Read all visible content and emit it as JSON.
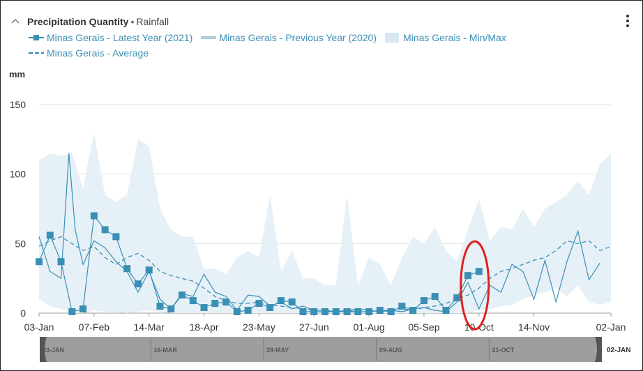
{
  "header": {
    "title": "Precipitation Quantity",
    "separator": "•",
    "subtitle": "Rainfall"
  },
  "legend": [
    {
      "label": "Minas Gerais - Latest Year (2021)",
      "icon": "line-square-marker",
      "color": "#3a8fb5"
    },
    {
      "label": "Minas Gerais - Previous Year (2020)",
      "icon": "light-line",
      "color": "#a8cfe0"
    },
    {
      "label": "Minas Gerais - Min/Max",
      "icon": "area-band",
      "color": "#d9e9f3"
    },
    {
      "label": "Minas Gerais - Average",
      "icon": "dashed-line",
      "color": "#3a8fb5"
    }
  ],
  "colors": {
    "series": "#3a8fb5",
    "band": "#e6f0f7",
    "grid": "#e0e0e0",
    "annotation": "#e02020"
  },
  "navigator": {
    "labels": [
      "03-JAN",
      "16-MAR",
      "28-MAY",
      "09-AUG",
      "21-OCT"
    ],
    "end_label": "02-JAN"
  },
  "chart_data": {
    "type": "line",
    "title": "Precipitation Quantity",
    "subtitle": "Rainfall",
    "ylabel": "mm",
    "ylim": [
      0,
      150
    ],
    "yticks": [
      0,
      50,
      100,
      150
    ],
    "xlim": [
      0,
      364
    ],
    "xticks": [
      {
        "day": 0,
        "label": "03-Jan"
      },
      {
        "day": 35,
        "label": "07-Feb"
      },
      {
        "day": 70,
        "label": "14-Mar"
      },
      {
        "day": 105,
        "label": "18-Apr"
      },
      {
        "day": 140,
        "label": "23-May"
      },
      {
        "day": 175,
        "label": "27-Jun"
      },
      {
        "day": 210,
        "label": "01-Aug"
      },
      {
        "day": 245,
        "label": "05-Sep"
      },
      {
        "day": 280,
        "label": "10-Oct"
      },
      {
        "day": 315,
        "label": "14-Nov"
      },
      {
        "day": 364,
        "label": "02-Jan"
      }
    ],
    "grid": true,
    "legend_position": "top-left",
    "series": [
      {
        "name": "Minas Gerais - Latest Year (2021)",
        "style": "line-with-square-markers",
        "x": [
          0,
          7,
          14,
          21,
          28,
          35,
          42,
          49,
          56,
          63,
          70,
          77,
          84,
          91,
          98,
          105,
          112,
          119,
          126,
          133,
          140,
          147,
          154,
          161,
          168,
          175,
          182,
          189,
          196,
          203,
          210,
          217,
          224,
          231,
          238,
          245,
          252,
          259,
          266,
          273,
          280
        ],
        "values": [
          37,
          56,
          37,
          1,
          3,
          70,
          60,
          55,
          32,
          21,
          31,
          5,
          3,
          13,
          9,
          4,
          7,
          8,
          1,
          2,
          7,
          4,
          9,
          8,
          1,
          1,
          1,
          1,
          1,
          1,
          1,
          2,
          1,
          5,
          2,
          9,
          12,
          2,
          11,
          27,
          30
        ]
      },
      {
        "name": "Minas Gerais - Previous Year (2020)",
        "style": "thin-line",
        "x": [
          0,
          7,
          14,
          19,
          23,
          28,
          35,
          42,
          49,
          56,
          63,
          70,
          77,
          84,
          91,
          98,
          105,
          112,
          119,
          126,
          133,
          140,
          147,
          154,
          161,
          168,
          175,
          182,
          189,
          196,
          203,
          210,
          217,
          224,
          231,
          238,
          245,
          252,
          259,
          266,
          273,
          280,
          287,
          294,
          301,
          308,
          315,
          322,
          329,
          336,
          343,
          350,
          357
        ],
        "values": [
          55,
          30,
          25,
          115,
          60,
          35,
          52,
          47,
          37,
          30,
          15,
          30,
          10,
          3,
          14,
          12,
          28,
          15,
          12,
          2,
          13,
          12,
          5,
          8,
          3,
          5,
          2,
          2,
          1,
          2,
          3,
          2,
          1,
          2,
          1,
          3,
          4,
          2,
          1,
          8,
          22,
          3,
          20,
          15,
          35,
          30,
          10,
          38,
          8,
          37,
          59,
          24,
          36
        ]
      },
      {
        "name": "Minas Gerais - Min/Max",
        "style": "area-band",
        "x": [
          0,
          7,
          14,
          21,
          28,
          35,
          42,
          49,
          56,
          63,
          70,
          77,
          84,
          91,
          98,
          105,
          112,
          119,
          126,
          133,
          140,
          147,
          154,
          161,
          168,
          175,
          182,
          189,
          196,
          203,
          210,
          217,
          224,
          231,
          238,
          245,
          252,
          259,
          266,
          273,
          280,
          287,
          294,
          301,
          308,
          315,
          322,
          329,
          336,
          343,
          350,
          357,
          364
        ],
        "min": [
          10,
          5,
          3,
          0,
          0,
          2,
          1,
          1,
          0,
          1,
          2,
          1,
          0,
          0,
          0,
          0,
          0,
          0,
          0,
          0,
          0,
          0,
          0,
          0,
          0,
          0,
          0,
          0,
          0,
          0,
          0,
          0,
          0,
          0,
          0,
          0,
          0,
          0,
          0,
          0,
          2,
          3,
          5,
          6,
          10,
          13,
          15,
          18,
          12,
          20,
          8,
          6,
          8
        ],
        "max": [
          110,
          115,
          113,
          115,
          90,
          130,
          85,
          80,
          85,
          125,
          120,
          75,
          60,
          55,
          55,
          32,
          32,
          28,
          40,
          45,
          40,
          85,
          30,
          45,
          25,
          25,
          20,
          20,
          85,
          20,
          40,
          35,
          20,
          40,
          55,
          50,
          62,
          45,
          37,
          60,
          82,
          52,
          62,
          60,
          75,
          62,
          75,
          80,
          85,
          95,
          85,
          107,
          115
        ]
      },
      {
        "name": "Minas Gerais - Average",
        "style": "dashed-line",
        "x": [
          0,
          7,
          14,
          21,
          28,
          35,
          42,
          49,
          56,
          63,
          70,
          77,
          84,
          91,
          98,
          105,
          112,
          119,
          126,
          133,
          140,
          147,
          154,
          161,
          168,
          175,
          182,
          189,
          196,
          203,
          210,
          217,
          224,
          231,
          238,
          245,
          252,
          259,
          266,
          273,
          280,
          287,
          294,
          301,
          308,
          315,
          322,
          329,
          336,
          343,
          350,
          357,
          364
        ],
        "values": [
          48,
          52,
          55,
          50,
          45,
          48,
          40,
          35,
          40,
          43,
          38,
          30,
          27,
          25,
          23,
          18,
          12,
          9,
          7,
          7,
          8,
          6,
          5,
          4,
          3,
          2,
          2,
          1,
          2,
          1,
          1,
          2,
          2,
          3,
          2,
          4,
          5,
          7,
          10,
          13,
          18,
          25,
          30,
          32,
          35,
          38,
          40,
          45,
          52,
          50,
          52,
          45,
          48
        ]
      }
    ]
  }
}
